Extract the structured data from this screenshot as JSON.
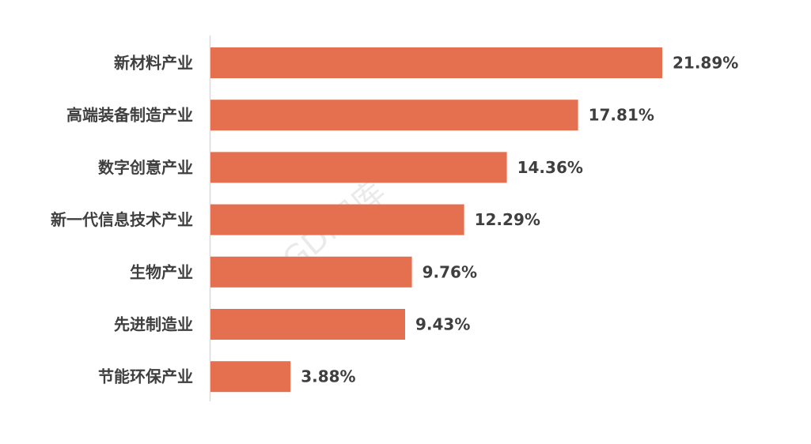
{
  "chart_data": {
    "type": "bar",
    "orientation": "horizontal",
    "categories": [
      "新材料产业",
      "高端装备制造产业",
      "数字创意产业",
      "新一代信息技术产业",
      "生物产业",
      "先进制造业",
      "节能环保产业"
    ],
    "values": [
      21.89,
      17.81,
      14.36,
      12.29,
      9.76,
      9.43,
      3.88
    ],
    "value_labels": [
      "21.89%",
      "17.81%",
      "14.36%",
      "12.29%",
      "9.76%",
      "9.43%",
      "3.88%"
    ],
    "xlim": [
      0,
      22
    ],
    "grid": false,
    "legend": "none",
    "bar_color": "#e4704f",
    "watermark": "GDi智库"
  }
}
